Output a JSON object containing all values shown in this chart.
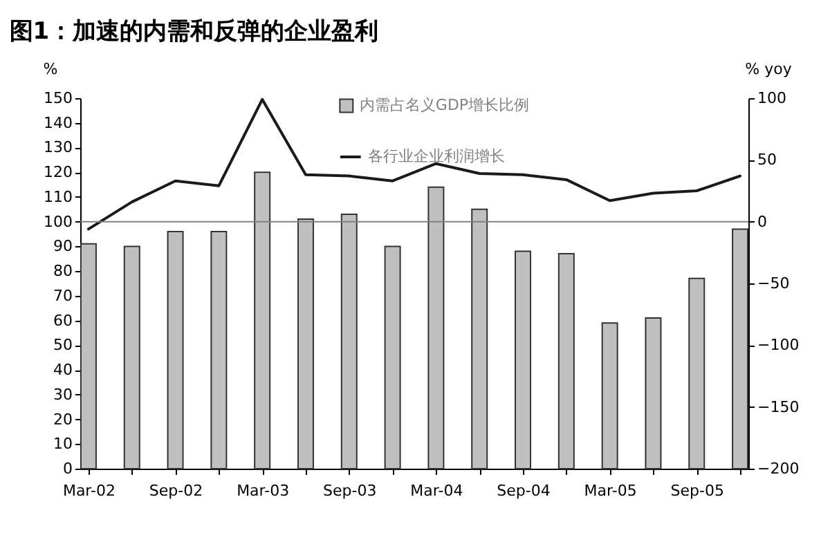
{
  "chart_data": {
    "type": "bar",
    "title": "图1：加速的内需和反弹的企业盈利",
    "ylabel": "%",
    "y2label": "% yoy",
    "categories": [
      "Mar-02",
      null,
      "Sep-02",
      null,
      "Mar-03",
      null,
      "Sep-03",
      null,
      "Mar-04",
      null,
      "Sep-04",
      null,
      "Mar-05",
      null,
      "Sep-05",
      null
    ],
    "series": [
      {
        "name": "内需占名义GDP增长比例",
        "color": "#c0c0c0",
        "values": [
          91,
          90,
          96,
          96,
          120,
          101,
          103,
          90,
          114,
          105,
          88,
          87,
          59,
          61,
          77,
          97
        ]
      },
      {
        "name": "各行业企业利润增长",
        "type": "line",
        "axis": "y2",
        "color": "#1a1a1a",
        "values": [
          -6,
          16,
          33,
          29,
          99,
          38,
          37,
          33,
          47,
          39,
          38,
          34,
          17,
          23,
          25,
          37
        ]
      }
    ],
    "ylim": [
      0,
      150
    ],
    "yticks": [
      0,
      10,
      20,
      30,
      40,
      50,
      60,
      70,
      80,
      90,
      100,
      110,
      120,
      130,
      140,
      150
    ],
    "y2lim": [
      -200,
      100
    ],
    "y2ticks": [
      -200,
      -150,
      -100,
      -50,
      0,
      50,
      100
    ],
    "ref_lines": [
      {
        "axis": "y2",
        "value": 0,
        "color": "#808080"
      }
    ],
    "legend": "top",
    "grid": false,
    "marker": "none",
    "line_style": "solid"
  }
}
